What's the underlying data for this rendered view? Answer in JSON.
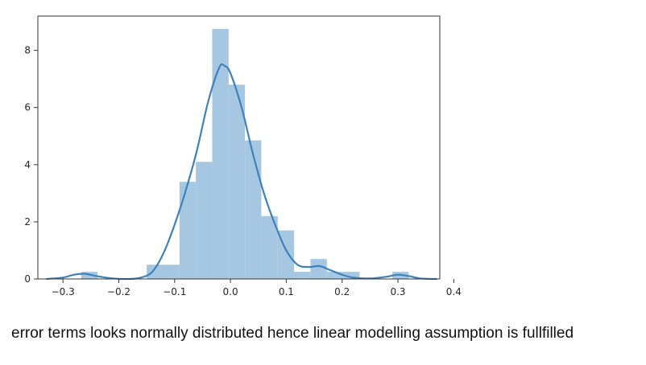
{
  "caption": "error terms looks normally distributed hence linear modelling assumption is fullfilled",
  "colors": {
    "bar_fill": "#a6c7e1",
    "kde_line": "#3f82b9",
    "axis": "#333333",
    "tick_text": "#262626"
  },
  "chart_data": {
    "type": "histogram",
    "title": "",
    "xlabel": "",
    "ylabel": "",
    "xlim": [
      -0.345,
      0.375
    ],
    "ylim": [
      0,
      9.2
    ],
    "grid": false,
    "xticks": [
      -0.3,
      -0.2,
      -0.1,
      0.0,
      0.1,
      0.2,
      0.3,
      0.4
    ],
    "xtick_labels": [
      "−0.3",
      "−0.2",
      "−0.1",
      "0.0",
      "0.1",
      "0.2",
      "0.3",
      "0.4"
    ],
    "yticks": [
      0,
      2,
      4,
      6,
      8
    ],
    "ytick_labels": [
      "0",
      "2",
      "4",
      "6",
      "8"
    ],
    "bins": [
      {
        "x0": -0.2673,
        "x1": -0.238,
        "value": 0.25
      },
      {
        "x0": -0.238,
        "x1": -0.2087,
        "value": 0.0
      },
      {
        "x0": -0.2087,
        "x1": -0.1793,
        "value": 0.0
      },
      {
        "x0": -0.1793,
        "x1": -0.15,
        "value": 0.0
      },
      {
        "x0": -0.15,
        "x1": -0.0913,
        "value": 0.5
      },
      {
        "x0": -0.0913,
        "x1": -0.062,
        "value": 3.4
      },
      {
        "x0": -0.062,
        "x1": -0.0327,
        "value": 4.1
      },
      {
        "x0": -0.0327,
        "x1": -0.0033,
        "value": 8.75
      },
      {
        "x0": -0.0033,
        "x1": 0.026,
        "value": 6.8
      },
      {
        "x0": 0.026,
        "x1": 0.0553,
        "value": 4.85
      },
      {
        "x0": 0.0553,
        "x1": 0.0847,
        "value": 2.2
      },
      {
        "x0": 0.0847,
        "x1": 0.114,
        "value": 1.7
      },
      {
        "x0": 0.114,
        "x1": 0.1433,
        "value": 0.25
      },
      {
        "x0": 0.1433,
        "x1": 0.1727,
        "value": 0.7
      },
      {
        "x0": 0.1727,
        "x1": 0.2313,
        "value": 0.25
      },
      {
        "x0": 0.2313,
        "x1": 0.29,
        "value": 0.0
      },
      {
        "x0": 0.29,
        "x1": 0.3193,
        "value": 0.25
      }
    ],
    "kde": [
      [
        -0.33,
        0.0
      ],
      [
        -0.3,
        0.05
      ],
      [
        -0.28,
        0.15
      ],
      [
        -0.26,
        0.18
      ],
      [
        -0.24,
        0.1
      ],
      [
        -0.21,
        0.02
      ],
      [
        -0.18,
        0.0
      ],
      [
        -0.16,
        0.05
      ],
      [
        -0.14,
        0.25
      ],
      [
        -0.12,
        0.9
      ],
      [
        -0.1,
        1.9
      ],
      [
        -0.08,
        3.1
      ],
      [
        -0.06,
        4.5
      ],
      [
        -0.04,
        6.2
      ],
      [
        -0.02,
        7.4
      ],
      [
        -0.01,
        7.45
      ],
      [
        0.0,
        7.2
      ],
      [
        0.02,
        6.0
      ],
      [
        0.04,
        4.4
      ],
      [
        0.06,
        3.0
      ],
      [
        0.08,
        1.9
      ],
      [
        0.1,
        1.0
      ],
      [
        0.12,
        0.5
      ],
      [
        0.14,
        0.42
      ],
      [
        0.16,
        0.45
      ],
      [
        0.18,
        0.3
      ],
      [
        0.2,
        0.15
      ],
      [
        0.22,
        0.05
      ],
      [
        0.25,
        0.02
      ],
      [
        0.28,
        0.08
      ],
      [
        0.3,
        0.15
      ],
      [
        0.32,
        0.1
      ],
      [
        0.34,
        0.02
      ],
      [
        0.37,
        0.0
      ]
    ]
  }
}
